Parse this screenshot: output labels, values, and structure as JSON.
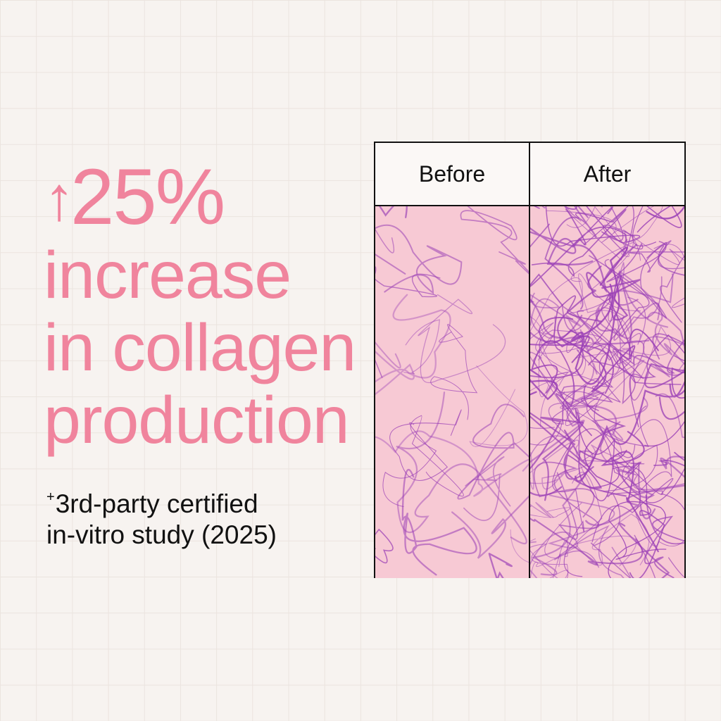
{
  "headline": {
    "arrow_icon": "up-arrow-icon",
    "stat": "25%",
    "line2": "increase",
    "line3": "in collagen",
    "line4": "production"
  },
  "footnote": {
    "marker": "+",
    "line1": "3rd-party certified",
    "line2": "in-vitro study (2025)"
  },
  "comparison": {
    "before_label": "Before",
    "after_label": "After"
  },
  "colors": {
    "accent_pink": "#f0849d",
    "tissue_pink": "#f7c9d4",
    "fiber_purple": "#9a3fb6"
  }
}
